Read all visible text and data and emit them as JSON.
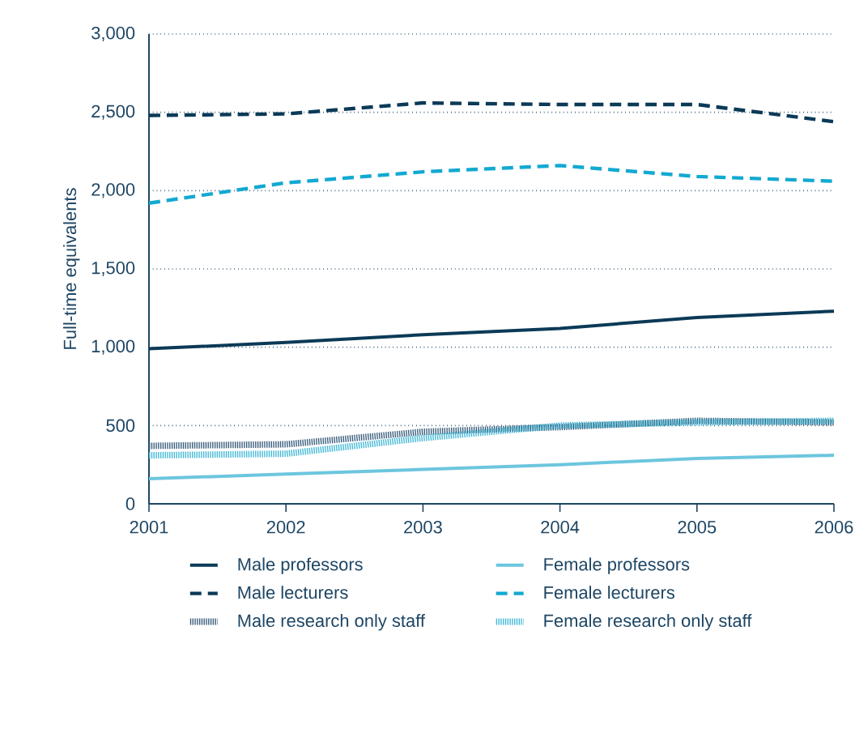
{
  "chart_data": {
    "type": "line",
    "ylabel": "Full-time equivalents",
    "x": [
      2001,
      2002,
      2003,
      2004,
      2005,
      2006
    ],
    "xlim": [
      2001,
      2006
    ],
    "xticks": [
      2001,
      2002,
      2003,
      2004,
      2005,
      2006
    ],
    "ylim": [
      0,
      3000
    ],
    "yticks": [
      {
        "value": 0,
        "label": "0"
      },
      {
        "value": 500,
        "label": "500"
      },
      {
        "value": 1000,
        "label": "1,000"
      },
      {
        "value": 1500,
        "label": "1,500"
      },
      {
        "value": 2000,
        "label": "2,000"
      },
      {
        "value": 2500,
        "label": "2,500"
      },
      {
        "value": 3000,
        "label": "3,000"
      }
    ],
    "grid": "y",
    "legend": "bottom",
    "marker": "none",
    "series": [
      {
        "name": "Male professors",
        "color": "#0b3a57",
        "line_style": "solid",
        "values": [
          990,
          1030,
          1080,
          1120,
          1190,
          1230
        ]
      },
      {
        "name": "Female professors",
        "color": "#6cc6de",
        "line_style": "solid",
        "values": [
          160,
          190,
          220,
          250,
          290,
          310
        ]
      },
      {
        "name": "Male lecturers",
        "color": "#0b3a57",
        "line_style": "dashed",
        "values": [
          2480,
          2490,
          2560,
          2550,
          2550,
          2440
        ]
      },
      {
        "name": "Female lecturers",
        "color": "#12a9d1",
        "line_style": "dashed",
        "values": [
          1920,
          2050,
          2120,
          2160,
          2090,
          2060
        ]
      },
      {
        "name": "Male research only staff",
        "color": "#3b5f7d",
        "line_style": "dotted",
        "values": [
          370,
          380,
          460,
          490,
          530,
          520
        ]
      },
      {
        "name": "Female research only staff",
        "color": "#45b9d6",
        "line_style": "dotted",
        "values": [
          310,
          320,
          420,
          500,
          520,
          530
        ]
      }
    ]
  }
}
